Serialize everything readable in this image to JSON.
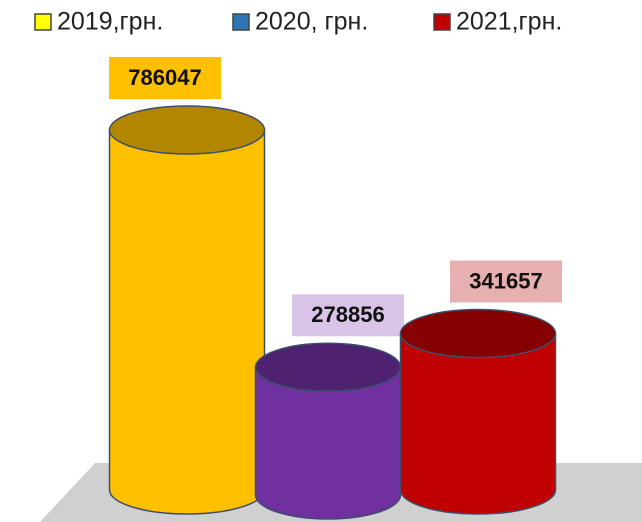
{
  "chart_data": {
    "type": "cylinder",
    "series": [
      {
        "name": "2019,грн.",
        "color": "#ffc000",
        "legend_color": "#ffff00",
        "values": [
          786047
        ],
        "label_color": "#ffc000"
      },
      {
        "name": "2020, грн.",
        "color": "#7030a0",
        "legend_color": "#2e75b6",
        "values": [
          278856
        ],
        "label_color": "#d9c3e6"
      },
      {
        "name": "2021,грн.",
        "color": "#c00000",
        "legend_color": "#c00000",
        "values": [
          341657
        ],
        "label_color": "#e6b0b0"
      }
    ],
    "legend": "top"
  }
}
